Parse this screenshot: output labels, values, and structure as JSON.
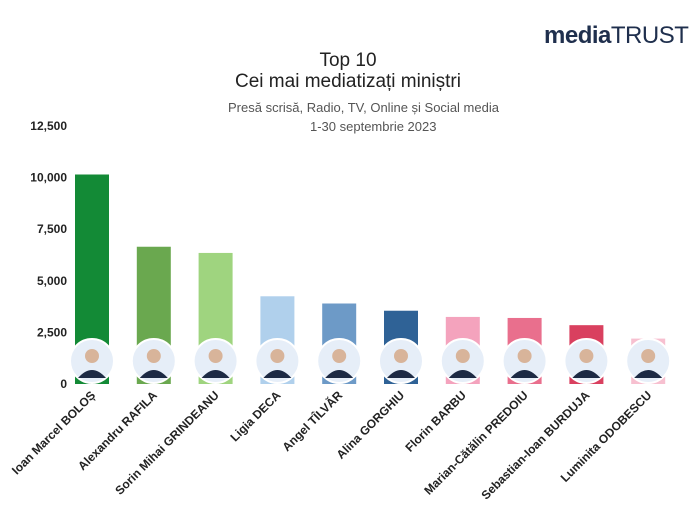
{
  "logo": {
    "part1": "media",
    "part2": "TRUST"
  },
  "header": {
    "title_line1": "Top 10",
    "title_line2": "Cei mai mediatizați miniștri",
    "subtitle_line1": "Presă scrisă, Radio, TV, Online și Social media",
    "subtitle_line2": "1-30 septembrie 2023"
  },
  "chart_data": {
    "type": "bar",
    "title": "Top 10 Cei mai mediatizați miniștri",
    "subtitle": "Presă scrisă, Radio, TV, Online și Social media 1-30 septembrie 2023",
    "categories": [
      "Ioan Marcel BOLOȘ",
      "Alexandru RAFILA",
      "Sorin Mihai GRINDEANU",
      "Ligia DECA",
      "Angel TÎLVĂR",
      "Alina GORGHIU",
      "Florin BARBU",
      "Marian-Cătălin PREDOIU",
      "Sebastian-Ioan BURDUJA",
      "Luminita ODOBESCU"
    ],
    "values": [
      10150,
      6650,
      6350,
      4250,
      3900,
      3550,
      3250,
      3200,
      2850,
      2200
    ],
    "bar_colors": [
      "#138a36",
      "#6aa84f",
      "#9fd47f",
      "#b0d0ec",
      "#6d9ac7",
      "#2f6296",
      "#f4a3bd",
      "#e96f8d",
      "#d9405f",
      "#f7c0d0"
    ],
    "ylim": [
      0,
      12500
    ],
    "yticks": [
      0,
      2500,
      5000,
      7500,
      10000,
      12500
    ],
    "ytick_labels": [
      "0",
      "2,500",
      "5,000",
      "7,500",
      "10,000",
      "12,500"
    ],
    "xlabel": "",
    "ylabel": "",
    "grid": false,
    "legend": "none"
  }
}
